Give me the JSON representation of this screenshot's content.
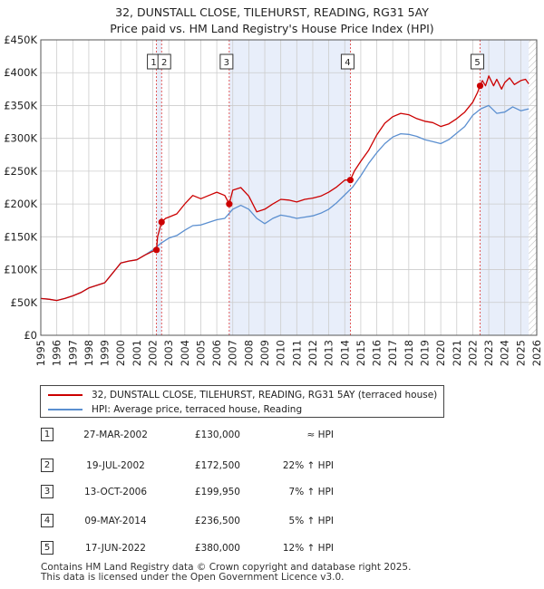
{
  "title": "32, DUNSTALL CLOSE, TILEHURST, READING, RG31 5AY",
  "subtitle": "Price paid vs. HM Land Registry's House Price Index (HPI)",
  "colors": {
    "property": "#cc0000",
    "hpi": "#5b8fd0",
    "shade": "#e8eefa",
    "grid": "#cccccc"
  },
  "chart_data": {
    "type": "line",
    "title": "Price paid vs. HM Land Registry's House Price Index (HPI)",
    "xlim": [
      1995,
      2026
    ],
    "ylim": [
      0,
      450000
    ],
    "x_ticks": [
      1995,
      1996,
      1997,
      1998,
      1999,
      2000,
      2001,
      2002,
      2003,
      2004,
      2005,
      2006,
      2007,
      2008,
      2009,
      2010,
      2011,
      2012,
      2013,
      2014,
      2015,
      2016,
      2017,
      2018,
      2019,
      2020,
      2021,
      2022,
      2023,
      2024,
      2025,
      2026
    ],
    "y_ticks": [
      {
        "value": 0,
        "label": "£0"
      },
      {
        "value": 50000,
        "label": "£50K"
      },
      {
        "value": 100000,
        "label": "£100K"
      },
      {
        "value": 150000,
        "label": "£150K"
      },
      {
        "value": 200000,
        "label": "£200K"
      },
      {
        "value": 250000,
        "label": "£250K"
      },
      {
        "value": 300000,
        "label": "£300K"
      },
      {
        "value": 350000,
        "label": "£350K"
      },
      {
        "value": 400000,
        "label": "£400K"
      },
      {
        "value": 450000,
        "label": "£450K"
      }
    ],
    "series": [
      {
        "name": "32, DUNSTALL CLOSE, TILEHURST, READING, RG31 5AY (terraced house)",
        "color": "#cc0000",
        "x": [
          1995,
          1995.5,
          1996,
          1996.5,
          1997,
          1997.5,
          1998,
          1998.5,
          1999,
          1999.5,
          2000,
          2000.5,
          2001,
          2001.5,
          2002,
          2002.23,
          2002.3,
          2002.55,
          2002.8,
          2003,
          2003.5,
          2004,
          2004.5,
          2005,
          2005.5,
          2006,
          2006.5,
          2006.78,
          2007,
          2007.5,
          2008,
          2008.5,
          2009,
          2009.5,
          2010,
          2010.5,
          2011,
          2011.5,
          2012,
          2012.5,
          2013,
          2013.5,
          2014,
          2014.35,
          2014.6,
          2015,
          2015.5,
          2016,
          2016.5,
          2017,
          2017.5,
          2018,
          2018.5,
          2019,
          2019.5,
          2020,
          2020.5,
          2021,
          2021.5,
          2022,
          2022.3,
          2022.46,
          2022.6,
          2022.8,
          2023,
          2023.3,
          2023.5,
          2023.8,
          2024,
          2024.3,
          2024.6,
          2025,
          2025.3,
          2025.5
        ],
        "values": [
          56000,
          55000,
          53000,
          56000,
          60000,
          65000,
          72000,
          76000,
          80000,
          95000,
          110000,
          113000,
          115000,
          122000,
          128000,
          130000,
          150000,
          172500,
          178000,
          180000,
          185000,
          200000,
          213000,
          208000,
          213000,
          218000,
          213000,
          199950,
          221000,
          225000,
          212000,
          188000,
          192000,
          200000,
          207000,
          206000,
          203000,
          207000,
          209000,
          212000,
          218000,
          226000,
          236500,
          236500,
          250000,
          265000,
          282000,
          305000,
          323000,
          333000,
          338000,
          336000,
          330000,
          326000,
          324000,
          318000,
          322000,
          330000,
          340000,
          355000,
          370000,
          380000,
          388000,
          380000,
          395000,
          380000,
          390000,
          375000,
          385000,
          392000,
          382000,
          388000,
          390000,
          383000
        ]
      },
      {
        "name": "HPI: Average price, terraced house, Reading",
        "color": "#5b8fd0",
        "x": [
          1995,
          1995.5,
          1996,
          1996.5,
          1997,
          1997.5,
          1998,
          1998.5,
          1999,
          1999.5,
          2000,
          2000.5,
          2001,
          2001.5,
          2002,
          2002.5,
          2003,
          2003.5,
          2004,
          2004.5,
          2005,
          2005.5,
          2006,
          2006.5,
          2007,
          2007.5,
          2008,
          2008.5,
          2009,
          2009.5,
          2010,
          2010.5,
          2011,
          2011.5,
          2012,
          2012.5,
          2013,
          2013.5,
          2014,
          2014.5,
          2015,
          2015.5,
          2016,
          2016.5,
          2017,
          2017.5,
          2018,
          2018.5,
          2019,
          2019.5,
          2020,
          2020.5,
          2021,
          2021.5,
          2022,
          2022.5,
          2023,
          2023.5,
          2024,
          2024.5,
          2025,
          2025.5
        ],
        "values": [
          56000,
          55000,
          53000,
          56000,
          60000,
          65000,
          72000,
          76000,
          80000,
          95000,
          110000,
          113000,
          115000,
          122000,
          130000,
          140000,
          148000,
          152000,
          160000,
          167000,
          168000,
          172000,
          176000,
          178000,
          192000,
          198000,
          192000,
          178000,
          170000,
          178000,
          183000,
          181000,
          178000,
          180000,
          182000,
          186000,
          192000,
          202000,
          214000,
          226000,
          243000,
          262000,
          278000,
          292000,
          302000,
          307000,
          306000,
          303000,
          298000,
          295000,
          292000,
          298000,
          308000,
          318000,
          335000,
          345000,
          350000,
          338000,
          340000,
          348000,
          342000,
          345000
        ]
      }
    ],
    "sales": [
      {
        "label": "1",
        "x": 2002.23,
        "value": 130000
      },
      {
        "label": "2",
        "x": 2002.55,
        "value": 172500
      },
      {
        "label": "3",
        "x": 2006.78,
        "value": 199950
      },
      {
        "label": "4",
        "x": 2014.35,
        "value": 236500
      },
      {
        "label": "5",
        "x": 2022.46,
        "value": 380000
      }
    ],
    "shaded_ranges": [
      {
        "from": 2002.23,
        "to": 2002.55
      },
      {
        "from": 2006.78,
        "to": 2014.35
      },
      {
        "from": 2022.46,
        "to": 2025.5
      }
    ],
    "hatched_range": {
      "from": 2025.5,
      "to": 2026
    }
  },
  "legend": {
    "property": "32, DUNSTALL CLOSE, TILEHURST, READING, RG31 5AY (terraced house)",
    "hpi": "HPI: Average price, terraced house, Reading"
  },
  "sales_table": [
    {
      "num": "1",
      "date": "27-MAR-2002",
      "price": "£130,000",
      "hpi": "≈ HPI"
    },
    {
      "num": "2",
      "date": "19-JUL-2002",
      "price": "£172,500",
      "hpi": "22% ↑ HPI"
    },
    {
      "num": "3",
      "date": "13-OCT-2006",
      "price": "£199,950",
      "hpi": "7% ↑ HPI"
    },
    {
      "num": "4",
      "date": "09-MAY-2014",
      "price": "£236,500",
      "hpi": "5% ↑ HPI"
    },
    {
      "num": "5",
      "date": "17-JUN-2022",
      "price": "£380,000",
      "hpi": "12% ↑ HPI"
    }
  ],
  "footer": {
    "line1": "Contains HM Land Registry data © Crown copyright and database right 2025.",
    "line2": "This data is licensed under the Open Government Licence v3.0."
  }
}
